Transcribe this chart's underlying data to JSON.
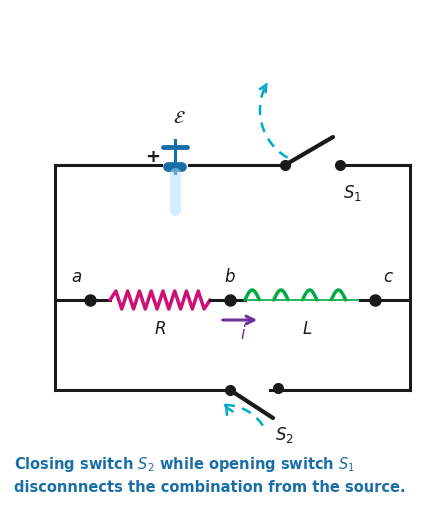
{
  "color_title_num": "#c8a000",
  "color_blue": "#1a6ea8",
  "color_circuit": "#1a1a1a",
  "color_resistor": "#cc1177",
  "color_inductor": "#00aa44",
  "color_battery": "#1a6ea8",
  "color_arrow_i": "#7030a0",
  "color_switch_arrow": "#00aacc",
  "bg_color": "#ffffff",
  "figw": 4.42,
  "figh": 5.29,
  "dpi": 100
}
